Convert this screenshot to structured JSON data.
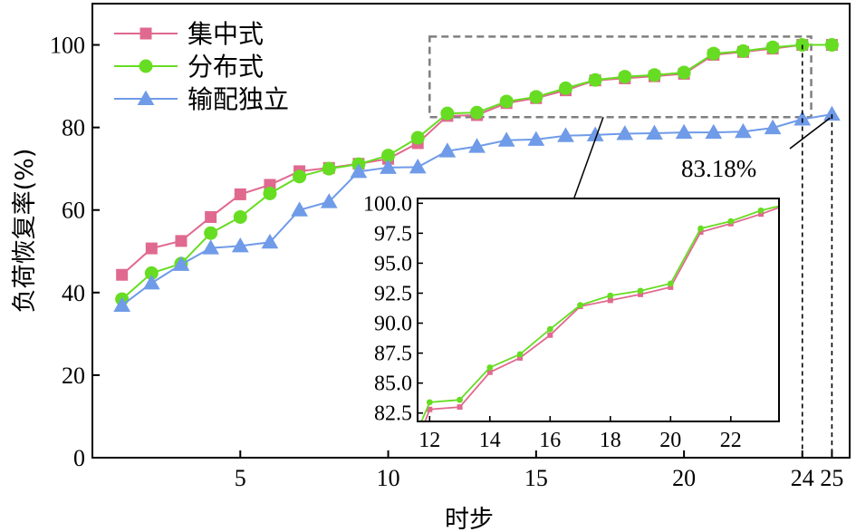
{
  "chart_data": {
    "type": "line",
    "xlabel": "时步",
    "ylabel": "负荷恢复率(%)",
    "xlim": [
      0,
      25.6
    ],
    "ylim": [
      0,
      110
    ],
    "x_ticks": [
      5,
      10,
      15,
      20,
      24,
      25
    ],
    "x_tick_labels": [
      "5",
      "10",
      "15",
      "20",
      "24",
      "25"
    ],
    "y_ticks": [
      0,
      20,
      40,
      60,
      80,
      100
    ],
    "legend_position": "top-left",
    "x": [
      1,
      2,
      3,
      4,
      5,
      6,
      7,
      8,
      9,
      10,
      11,
      12,
      13,
      14,
      15,
      16,
      17,
      18,
      19,
      20,
      21,
      22,
      23,
      24,
      25
    ],
    "series": [
      {
        "name": "集中式",
        "color": "#e0698f",
        "marker": "square",
        "values": [
          44.3,
          50.7,
          52.5,
          58.3,
          63.8,
          66.1,
          69.4,
          70.2,
          71.2,
          72.4,
          76.2,
          82.8,
          83.0,
          85.9,
          87.1,
          89.0,
          91.4,
          91.9,
          92.4,
          93.0,
          97.6,
          98.3,
          99.1,
          100.0,
          100.0
        ]
      },
      {
        "name": "分布式",
        "color": "#66dd22",
        "marker": "circle",
        "values": [
          38.4,
          44.7,
          47.0,
          54.4,
          58.3,
          64.0,
          68.1,
          70.0,
          71.1,
          73.2,
          77.5,
          83.4,
          83.6,
          86.3,
          87.4,
          89.5,
          91.5,
          92.3,
          92.7,
          93.3,
          97.9,
          98.5,
          99.4,
          100.0,
          100.0
        ]
      },
      {
        "name": "输配独立",
        "color": "#6f9be8",
        "marker": "triangle",
        "values": [
          36.9,
          42.3,
          46.8,
          50.8,
          51.3,
          52.2,
          60.0,
          62.0,
          69.3,
          70.3,
          70.4,
          74.3,
          75.4,
          76.9,
          77.1,
          78.0,
          78.2,
          78.5,
          78.6,
          78.8,
          78.8,
          79.0,
          79.9,
          82.0,
          83.18
        ]
      }
    ],
    "annotation": {
      "text": "83.18%",
      "x": 25,
      "y": 83.18
    },
    "inset": {
      "x_range": [
        11.6,
        23.6
      ],
      "y_range": [
        81.8,
        100.4
      ],
      "x_ticks": [
        12,
        14,
        16,
        18,
        20,
        22
      ],
      "x_tick_labels": [
        "12",
        "14",
        "16",
        "18",
        "20",
        "22"
      ],
      "y_ticks": [
        82.5,
        85.0,
        87.5,
        90.0,
        92.5,
        95.0,
        97.5,
        100.0
      ],
      "y_tick_labels": [
        "82.5",
        "85.0",
        "87.5",
        "90.0",
        "92.5",
        "95.0",
        "97.5",
        "100.0"
      ],
      "x_data": [
        11,
        12,
        13,
        14,
        15,
        16,
        17,
        18,
        19,
        20,
        21,
        22,
        23,
        24
      ],
      "series_indices": [
        0,
        1
      ]
    },
    "zoom_box": {
      "x_range": [
        11.4,
        24.3
      ],
      "y_range": [
        82.5,
        102
      ]
    }
  },
  "colors": {
    "axis": "#000000",
    "zoom_box": "#7f7f7f"
  }
}
